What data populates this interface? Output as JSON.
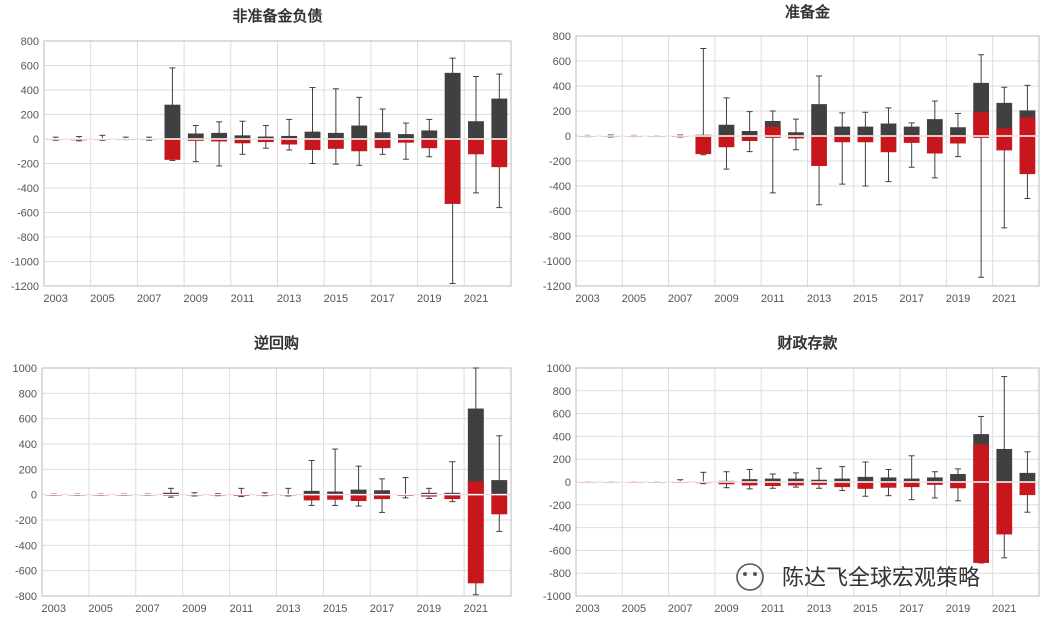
{
  "watermark": "陈达飞全球宏观策略",
  "colors": {
    "positive": "#404040",
    "negative": "#c8161d",
    "whisker": "#404040",
    "grid": "#dddddd",
    "axis": "#bbbbbb"
  },
  "chart_data": [
    {
      "type": "bar",
      "title": "非准备金负债",
      "ylim": [
        -1200,
        800
      ],
      "yticks": [
        800,
        600,
        400,
        200,
        0,
        -200,
        -400,
        -600,
        -800,
        -1000,
        -1200
      ],
      "grid": true,
      "years": [
        2003,
        2004,
        2005,
        2006,
        2007,
        2008,
        2009,
        2010,
        2011,
        2012,
        2013,
        2014,
        2015,
        2016,
        2017,
        2018,
        2019,
        2020,
        2021,
        2022
      ],
      "xtick_labels": [
        "2003",
        "2005",
        "2007",
        "2009",
        "2011",
        "2013",
        "2015",
        "2017",
        "2019",
        "2021"
      ],
      "series": [
        {
          "name": "",
          "values": [
            2,
            4,
            2,
            1,
            2,
            280,
            45,
            50,
            30,
            20,
            25,
            60,
            50,
            110,
            55,
            40,
            70,
            540,
            145,
            330
          ]
        },
        {
          "name": "",
          "values": [
            -3,
            -10,
            -4,
            -2,
            -3,
            -170,
            -15,
            -20,
            -35,
            -25,
            -45,
            -90,
            -80,
            -100,
            -75,
            -30,
            -75,
            -530,
            -125,
            -230
          ]
        }
      ],
      "whisker_high": [
        15,
        20,
        30,
        15,
        15,
        580,
        110,
        140,
        145,
        110,
        160,
        420,
        410,
        340,
        245,
        130,
        160,
        660,
        510,
        530
      ],
      "whisker_low": [
        -10,
        -15,
        -10,
        -5,
        -10,
        -175,
        -185,
        -220,
        -125,
        -75,
        -90,
        -200,
        -205,
        -215,
        -125,
        -165,
        -145,
        -1180,
        -440,
        -560
      ]
    },
    {
      "type": "bar",
      "title": "准备金",
      "ylim": [
        -1200,
        800
      ],
      "yticks": [
        800,
        600,
        400,
        200,
        0,
        -200,
        -400,
        -600,
        -800,
        -1000,
        -1200
      ],
      "grid": true,
      "years": [
        2003,
        2004,
        2005,
        2006,
        2007,
        2008,
        2009,
        2010,
        2011,
        2012,
        2013,
        2014,
        2015,
        2016,
        2017,
        2018,
        2019,
        2020,
        2021,
        2022
      ],
      "xtick_labels": [
        "2003",
        "2005",
        "2007",
        "2009",
        "2011",
        "2013",
        "2015",
        "2017",
        "2019",
        "2021"
      ],
      "series": [
        {
          "name": "",
          "values": [
            1,
            2,
            1,
            1,
            2,
            10,
            90,
            40,
            120,
            30,
            255,
            75,
            75,
            100,
            75,
            135,
            70,
            425,
            265,
            205
          ]
        },
        {
          "name": "",
          "values": [
            -2,
            -3,
            -2,
            -1,
            -2,
            -145,
            -90,
            -40,
            -15,
            -20,
            -240,
            -50,
            -50,
            -130,
            -55,
            -140,
            -60,
            -15,
            -115,
            -305
          ]
        }
      ],
      "whisker_high": [
        5,
        8,
        5,
        3,
        8,
        700,
        305,
        195,
        200,
        135,
        480,
        185,
        190,
        225,
        105,
        280,
        180,
        650,
        390,
        405
      ],
      "whisker_low": [
        -5,
        -8,
        -5,
        -3,
        -8,
        -150,
        -265,
        -125,
        -455,
        -110,
        -550,
        -385,
        -400,
        -365,
        -250,
        -335,
        -165,
        -1130,
        -735,
        -500
      ],
      "negative_overlay": [
        0,
        0,
        0,
        0,
        0,
        0,
        0,
        0,
        75,
        0,
        0,
        0,
        0,
        0,
        0,
        0,
        0,
        190,
        60,
        150
      ]
    },
    {
      "type": "bar",
      "title": "逆回购",
      "ylim": [
        -800,
        1000
      ],
      "yticks": [
        1000,
        800,
        600,
        400,
        200,
        0,
        -200,
        -400,
        -600,
        -800
      ],
      "grid": true,
      "years": [
        2003,
        2004,
        2005,
        2006,
        2007,
        2008,
        2009,
        2010,
        2011,
        2012,
        2013,
        2014,
        2015,
        2016,
        2017,
        2018,
        2019,
        2020,
        2021,
        2022
      ],
      "xtick_labels": [
        "2003",
        "2005",
        "2007",
        "2009",
        "2011",
        "2013",
        "2015",
        "2017",
        "2019",
        "2021"
      ],
      "series": [
        {
          "name": "",
          "values": [
            1,
            1,
            1,
            1,
            1,
            15,
            2,
            2,
            5,
            2,
            5,
            30,
            25,
            40,
            35,
            5,
            15,
            15,
            680,
            115
          ]
        },
        {
          "name": "",
          "values": [
            -1,
            -1,
            -1,
            -1,
            -1,
            -10,
            -2,
            -2,
            -10,
            -2,
            -5,
            -45,
            -40,
            -50,
            -35,
            -10,
            -15,
            -35,
            -700,
            -155
          ]
        }
      ],
      "whisker_high": [
        5,
        5,
        5,
        5,
        5,
        50,
        15,
        8,
        50,
        15,
        50,
        270,
        360,
        225,
        125,
        135,
        50,
        260,
        1000,
        465
      ],
      "whisker_low": [
        -5,
        -5,
        -5,
        -5,
        -5,
        -20,
        -10,
        -8,
        -15,
        -8,
        -10,
        -85,
        -85,
        -90,
        -140,
        -25,
        -30,
        -55,
        -790,
        -290
      ],
      "negative_overlay": [
        0,
        0,
        0,
        0,
        0,
        0,
        0,
        0,
        0,
        0,
        0,
        0,
        0,
        0,
        0,
        0,
        0,
        0,
        105,
        0
      ]
    },
    {
      "type": "bar",
      "title": "财政存款",
      "ylim": [
        -1000,
        1000
      ],
      "yticks": [
        1000,
        800,
        600,
        400,
        200,
        0,
        -200,
        -400,
        -600,
        -800,
        -1000
      ],
      "grid": true,
      "years": [
        2003,
        2004,
        2005,
        2006,
        2007,
        2008,
        2009,
        2010,
        2011,
        2012,
        2013,
        2014,
        2015,
        2016,
        2017,
        2018,
        2019,
        2020,
        2021,
        2022
      ],
      "xtick_labels": [
        "2003",
        "2005",
        "2007",
        "2009",
        "2011",
        "2013",
        "2015",
        "2017",
        "2019",
        "2021"
      ],
      "series": [
        {
          "name": "",
          "values": [
            1,
            1,
            1,
            1,
            5,
            5,
            10,
            25,
            30,
            30,
            20,
            30,
            45,
            40,
            30,
            40,
            70,
            420,
            290,
            80
          ]
        },
        {
          "name": "",
          "values": [
            -1,
            -1,
            -1,
            -1,
            -5,
            -10,
            -20,
            -30,
            -35,
            -30,
            -25,
            -45,
            -60,
            -50,
            -45,
            -25,
            -55,
            -710,
            -460,
            -115
          ]
        }
      ],
      "whisker_high": [
        3,
        3,
        3,
        3,
        20,
        85,
        90,
        110,
        70,
        80,
        120,
        135,
        175,
        110,
        230,
        90,
        115,
        575,
        925,
        265
      ],
      "whisker_low": [
        -3,
        -3,
        -3,
        -3,
        -5,
        -15,
        -50,
        -60,
        -55,
        -45,
        -55,
        -75,
        -125,
        -120,
        -155,
        -140,
        -165,
        -710,
        -665,
        -265
      ],
      "negative_overlay": [
        0,
        0,
        0,
        0,
        0,
        0,
        0,
        0,
        0,
        0,
        0,
        0,
        0,
        0,
        0,
        0,
        0,
        330,
        0,
        0
      ]
    }
  ]
}
